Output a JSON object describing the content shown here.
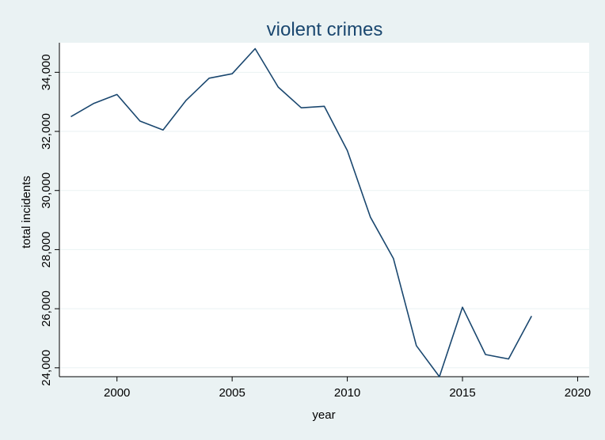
{
  "chart_data": {
    "type": "line",
    "title": "violent crimes",
    "xlabel": "year",
    "ylabel": "total incidents",
    "xlim": [
      1997.5,
      2020.5
    ],
    "ylim": [
      23700,
      35000
    ],
    "xticks": [
      2000,
      2005,
      2010,
      2015,
      2020
    ],
    "yticks": [
      24000,
      26000,
      28000,
      30000,
      32000,
      34000
    ],
    "x_tick_labels": [
      "2000",
      "2005",
      "2010",
      "2015",
      "2020"
    ],
    "y_tick_labels": [
      "24,000",
      "26,000",
      "28,000",
      "30,000",
      "32,000",
      "34,000"
    ],
    "grid": true,
    "legend": "none",
    "series": [
      {
        "color": "#1a476f",
        "x": [
          1998,
          1999,
          2000,
          2001,
          2002,
          2003,
          2004,
          2005,
          2006,
          2007,
          2008,
          2009,
          2010,
          2011,
          2012,
          2013,
          2014,
          2015,
          2016,
          2017,
          2018
        ],
        "y": [
          32500,
          32950,
          33250,
          32350,
          32050,
          33050,
          33800,
          33950,
          34800,
          33500,
          32800,
          32850,
          31350,
          29100,
          27700,
          24750,
          23700,
          26050,
          24450,
          24300,
          25750
        ]
      }
    ],
    "colors": {
      "background": "#eaf2f3",
      "plot_background": "#ffffff",
      "grid": "#eaf2f3",
      "line": "#1a476f"
    }
  }
}
